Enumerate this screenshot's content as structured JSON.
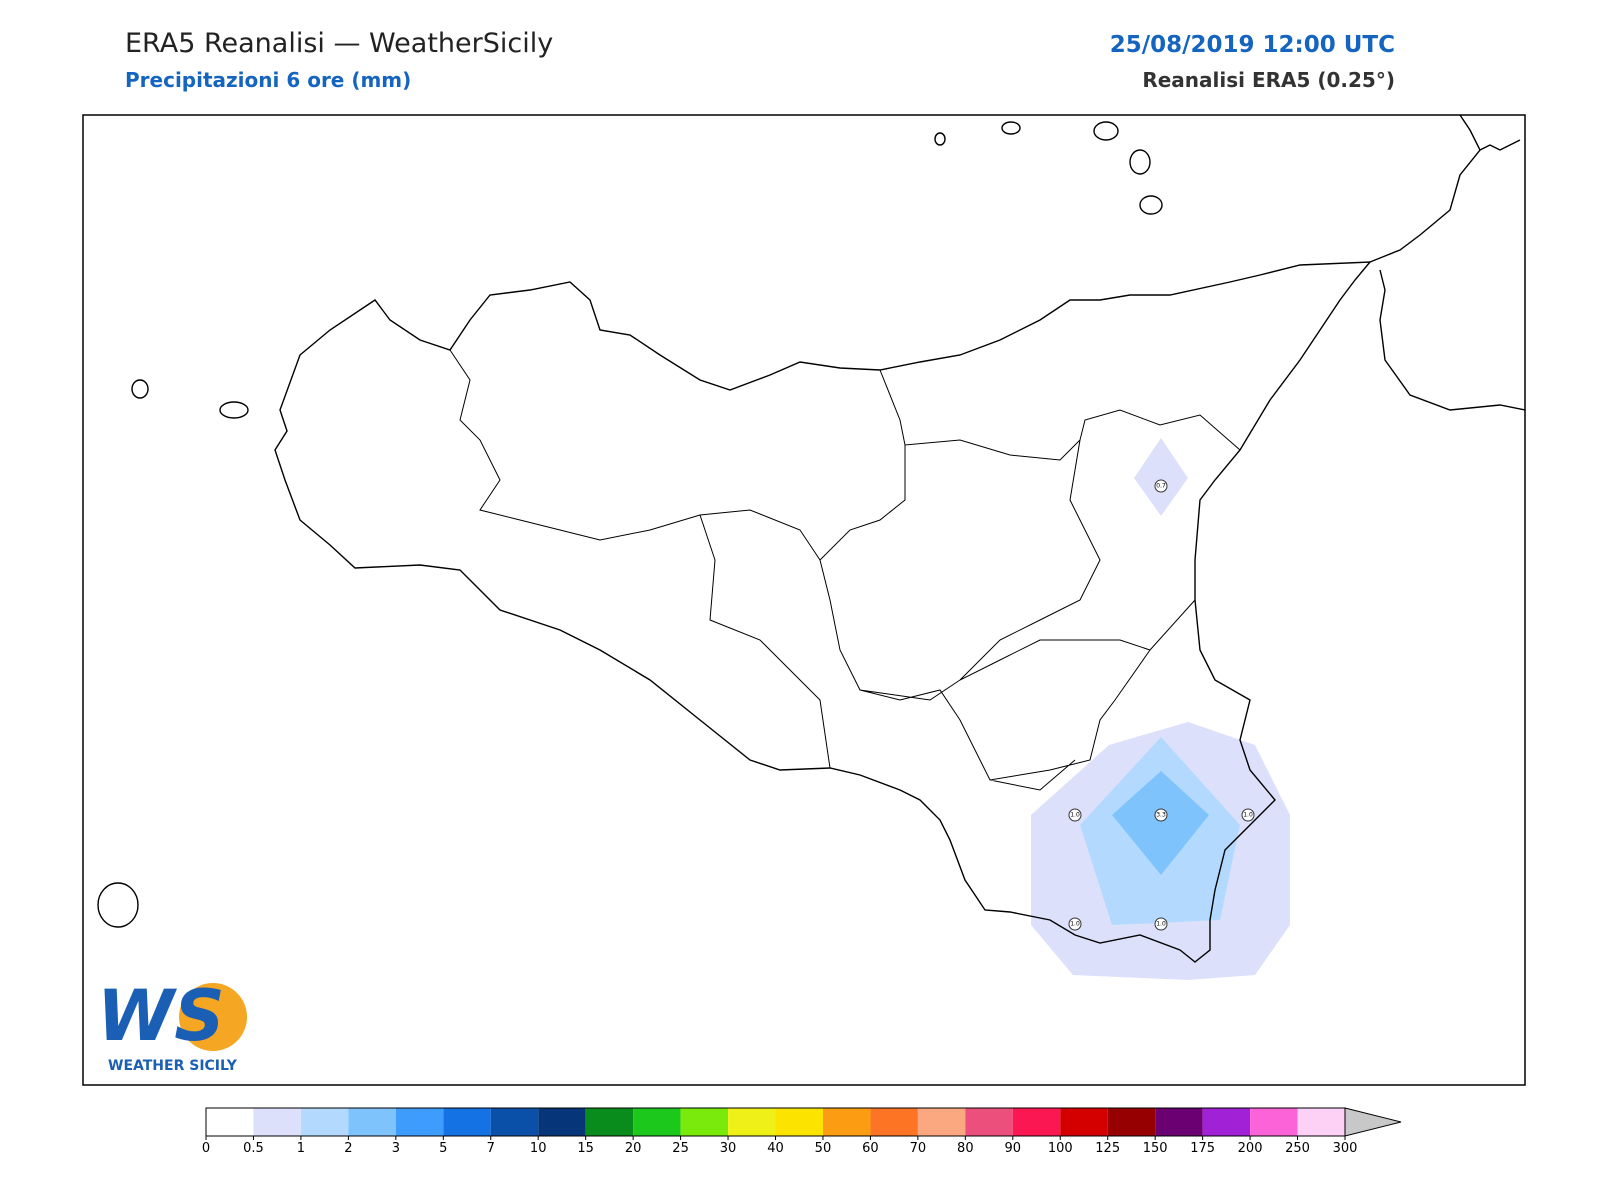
{
  "header": {
    "title": "ERA5 Reanalisi — WeatherSicily",
    "subtitle": "Precipitazioni 6 ore (mm)",
    "date": "25/08/2019 12:00 UTC",
    "model": "Reanalisi ERA5 (0.25°)"
  },
  "stations": [
    "0.7",
    "3.3",
    "1.0",
    "1.0",
    "1.0",
    "1.0"
  ],
  "logo": {
    "mark": "WS",
    "name": "WEATHER SICILY"
  },
  "colorbar": {
    "levels": [
      0,
      0.5,
      1,
      2,
      3,
      5,
      7,
      10,
      15,
      20,
      25,
      30,
      40,
      50,
      60,
      70,
      80,
      90,
      100,
      125,
      150,
      175,
      200,
      250,
      300
    ],
    "colors": [
      "#ffffff",
      "#dde0fb",
      "#b3dafe",
      "#7fc3fd",
      "#3e9dfc",
      "#1572e4",
      "#0a4fa8",
      "#063579",
      "#0a8c1c",
      "#1dc81d",
      "#7aea0d",
      "#f0f019",
      "#fde400",
      "#fc9c12",
      "#fc7424",
      "#fba77f",
      "#ed4f7c",
      "#fb1752",
      "#d40000",
      "#960000",
      "#6a0071",
      "#a122d6",
      "#fd63d9",
      "#fdd0f6"
    ],
    "over_color": "#c8c8c8"
  }
}
